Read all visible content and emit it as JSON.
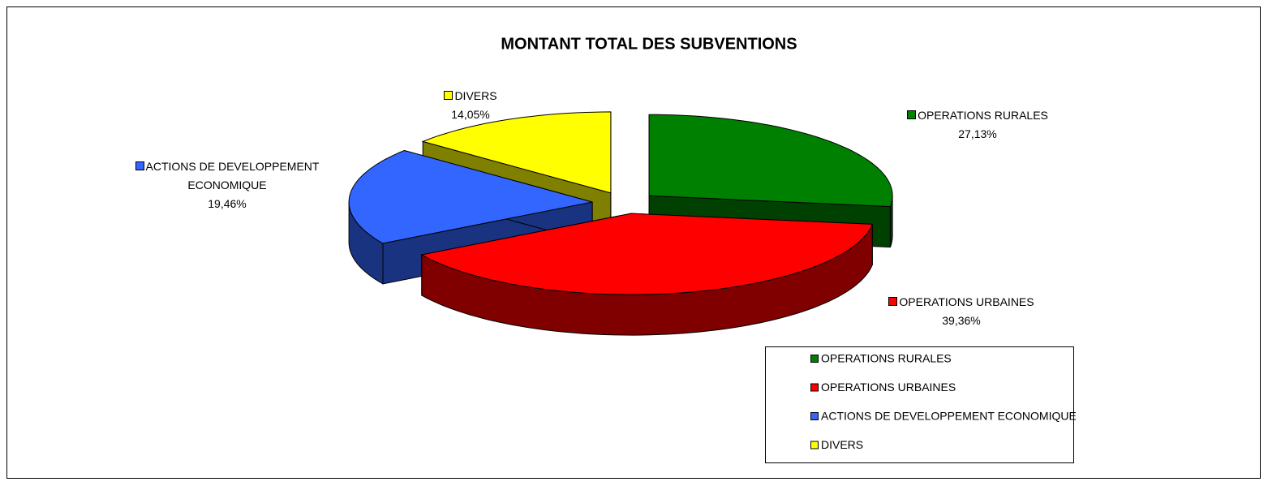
{
  "chart_data": {
    "type": "pie3d",
    "title": "MONTANT TOTAL DES SUBVENTIONS",
    "categories": [
      "OPERATIONS RURALES",
      "OPERATIONS URBAINES",
      "ACTIONS DE DEVELOPPEMENT ECONOMIQUE",
      "DIVERS"
    ],
    "values": [
      27.13,
      39.36,
      19.46,
      14.05
    ],
    "value_labels": [
      "27,13%",
      "39,36%",
      "19,46%",
      "14,05%"
    ],
    "colors": [
      "#008000",
      "#ff0000",
      "#3366ff",
      "#ffff00"
    ],
    "legend": "bottom-right"
  }
}
